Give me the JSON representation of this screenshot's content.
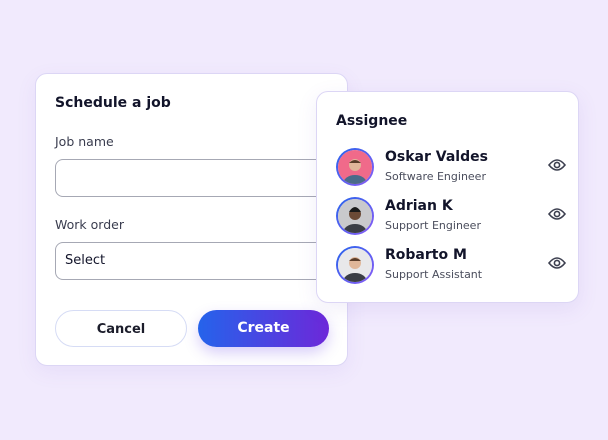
{
  "schedule": {
    "title": "Schedule a job",
    "job_name_label": "Job name",
    "job_name_value": "",
    "work_order_label": "Work order",
    "work_order_value": "Select",
    "cancel_label": "Cancel",
    "create_label": "Create"
  },
  "assignee": {
    "title": "Assignee",
    "people": [
      {
        "name": "Oskar Valdes",
        "role": "Software Engineer",
        "bg": "#f06a8a"
      },
      {
        "name": "Adrian K",
        "role": "Support Engineer",
        "bg": "#c9c9cc"
      },
      {
        "name": "Robarto M",
        "role": "Support Assistant",
        "bg": "#e8e8ea"
      }
    ]
  },
  "colors": {
    "background": "#f1eafd",
    "accent_start": "#2563eb",
    "accent_end": "#6d28d9"
  }
}
